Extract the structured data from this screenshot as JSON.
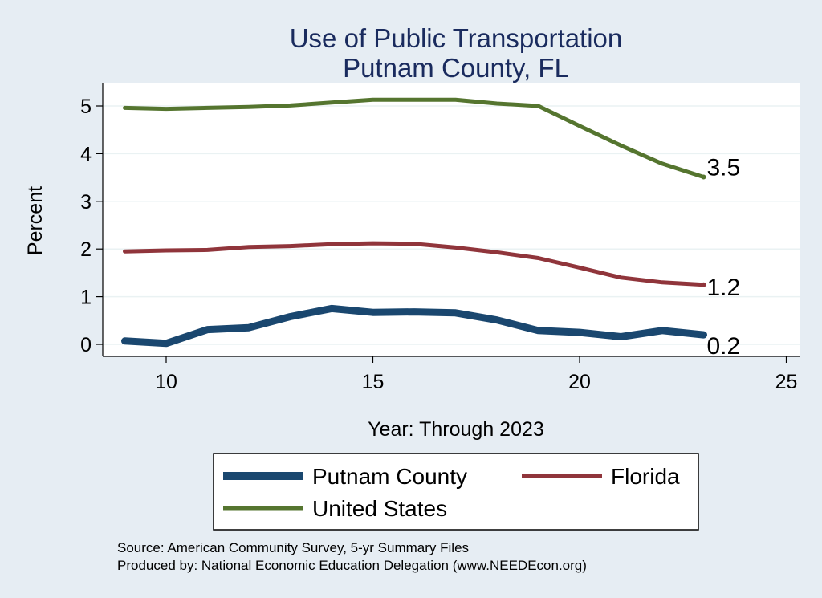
{
  "chart_data": {
    "type": "line",
    "title": [
      "Use of Public Transportation",
      "Putnam County, FL"
    ],
    "xlabel": "Year: Through 2023",
    "ylabel": "Percent",
    "xlim": [
      9,
      25
    ],
    "ylim": [
      0,
      5
    ],
    "xticks": [
      10,
      15,
      20,
      25
    ],
    "yticks": [
      0,
      1,
      2,
      3,
      4,
      5
    ],
    "grid": true,
    "legend_position": "bottom",
    "series": [
      {
        "name": "Putnam County",
        "color": "#1a476f",
        "x": [
          9,
          10,
          11,
          12,
          13,
          14,
          15,
          16,
          17,
          18,
          19,
          20,
          21,
          22,
          23
        ],
        "y": [
          0.07,
          0.02,
          0.31,
          0.35,
          0.58,
          0.75,
          0.67,
          0.68,
          0.66,
          0.51,
          0.29,
          0.25,
          0.16,
          0.29,
          0.2
        ],
        "end_label": "0.2"
      },
      {
        "name": "Florida",
        "color": "#90353b",
        "x": [
          9,
          10,
          11,
          12,
          13,
          14,
          15,
          16,
          17,
          18,
          19,
          20,
          21,
          22,
          23
        ],
        "y": [
          1.95,
          1.97,
          1.98,
          2.04,
          2.06,
          2.1,
          2.12,
          2.11,
          2.03,
          1.93,
          1.81,
          1.61,
          1.4,
          1.3,
          1.25
        ],
        "end_label": "1.2"
      },
      {
        "name": "United States",
        "color": "#55752f",
        "x": [
          9,
          10,
          11,
          12,
          13,
          14,
          15,
          16,
          17,
          18,
          19,
          20,
          21,
          22,
          23
        ],
        "y": [
          4.96,
          4.94,
          4.96,
          4.98,
          5.01,
          5.07,
          5.13,
          5.13,
          5.13,
          5.05,
          5.0,
          4.58,
          4.17,
          3.79,
          3.51
        ],
        "end_label": "3.5"
      }
    ],
    "source": [
      "Source: American Community Survey, 5-yr Summary Files",
      "Produced by: National Economic Education Delegation (www.NEEDEcon.org)"
    ]
  }
}
